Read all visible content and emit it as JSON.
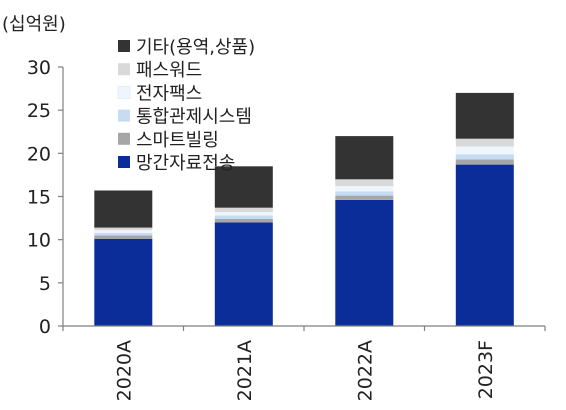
{
  "chart_data": {
    "type": "bar",
    "stacked": true,
    "unit_label": "(십억원)",
    "categories": [
      "2020A",
      "2021A",
      "2022A",
      "2023F"
    ],
    "ylim": [
      0,
      30
    ],
    "yticks": [
      0,
      5,
      10,
      15,
      20,
      25,
      30
    ],
    "grid": false,
    "legend_position": "top-left, inside plot",
    "series": [
      {
        "name": "망간자료전송",
        "color": "#0A2D9A",
        "values": [
          10.1,
          12.0,
          14.6,
          18.7
        ]
      },
      {
        "name": "스마트빌링",
        "color": "#A6A6A6",
        "values": [
          0.4,
          0.4,
          0.5,
          0.6
        ]
      },
      {
        "name": "통합관제시스템",
        "color": "#C5DCF2",
        "values": [
          0.3,
          0.4,
          0.5,
          0.6
        ]
      },
      {
        "name": "전자팩스",
        "color": "#EEF6FB",
        "values": [
          0.3,
          0.4,
          0.6,
          0.9
        ]
      },
      {
        "name": "패스워드",
        "color": "#D9D9D9",
        "values": [
          0.3,
          0.5,
          0.8,
          0.9
        ]
      },
      {
        "name": "기타(용역,상품)",
        "color": "#333333",
        "values": [
          4.3,
          4.8,
          5.0,
          5.3
        ]
      }
    ]
  }
}
